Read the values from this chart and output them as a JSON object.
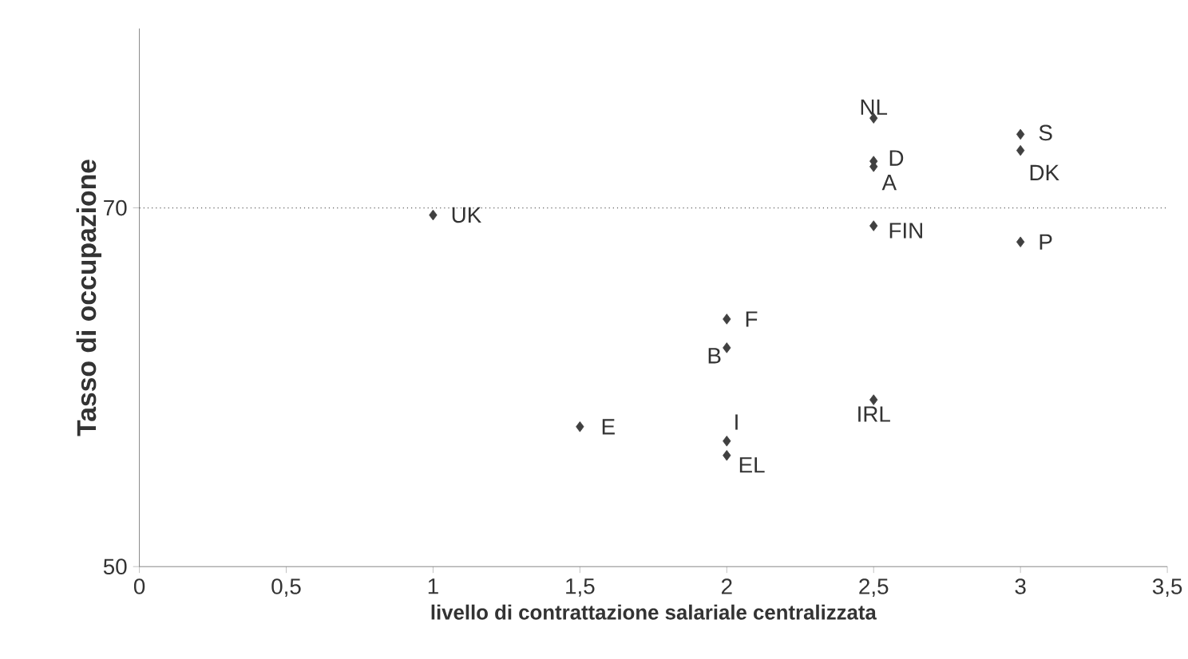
{
  "chart_data": {
    "type": "scatter",
    "xlabel": "livello di contrattazione salariale centralizzata",
    "ylabel": "Tasso di occupazione",
    "series": [
      {
        "color": "#404040",
        "x": [
          2.5,
          2.5,
          2.5,
          2.5,
          3,
          3,
          3,
          1,
          2,
          2,
          2,
          2,
          1.5,
          2.5
        ],
        "values": [
          75,
          72.6,
          72.3,
          69.0,
          74.1,
          73.2,
          68.1,
          69.6,
          63.8,
          62.2,
          57.0,
          56.2,
          57.8,
          59.3
        ]
      }
    ],
    "marker": "diamond",
    "xlim": [
      0,
      3.5
    ],
    "ylim": [
      50,
      80
    ],
    "xticks": [
      0,
      {
        "value": 0.5,
        "label": "0,5"
      },
      1,
      {
        "value": 1.5,
        "label": "1,5"
      },
      2,
      {
        "value": 2.5,
        "label": "2,5"
      },
      3,
      {
        "value": 3.5,
        "label": "3,5"
      }
    ],
    "yticks": [
      50,
      70
    ],
    "ref_lines": [
      {
        "axis": "y",
        "value": 70,
        "color": "#606060",
        "line_style": "dotted"
      }
    ],
    "annotations": [
      {
        "text": "NL",
        "x": 2.5,
        "y": 75
      },
      {
        "text": "D",
        "x": 2.5,
        "y": 72.6
      },
      {
        "text": "A",
        "x": 2.5,
        "y": 72.3
      },
      {
        "text": "FIN",
        "x": 2.5,
        "y": 69.0
      },
      {
        "text": "S",
        "x": 3,
        "y": 74.1
      },
      {
        "text": "DK",
        "x": 3,
        "y": 73.2
      },
      {
        "text": "P",
        "x": 3,
        "y": 68.1
      },
      {
        "text": "UK",
        "x": 1,
        "y": 69.6
      },
      {
        "text": "F",
        "x": 2,
        "y": 63.8
      },
      {
        "text": "B",
        "x": 2,
        "y": 62.2
      },
      {
        "text": "I",
        "x": 2,
        "y": 57.0
      },
      {
        "text": "EL",
        "x": 2,
        "y": 56.2
      },
      {
        "text": "E",
        "x": 1.5,
        "y": 57.8
      },
      {
        "text": "IRL",
        "x": 2.5,
        "y": 59.3
      }
    ]
  }
}
